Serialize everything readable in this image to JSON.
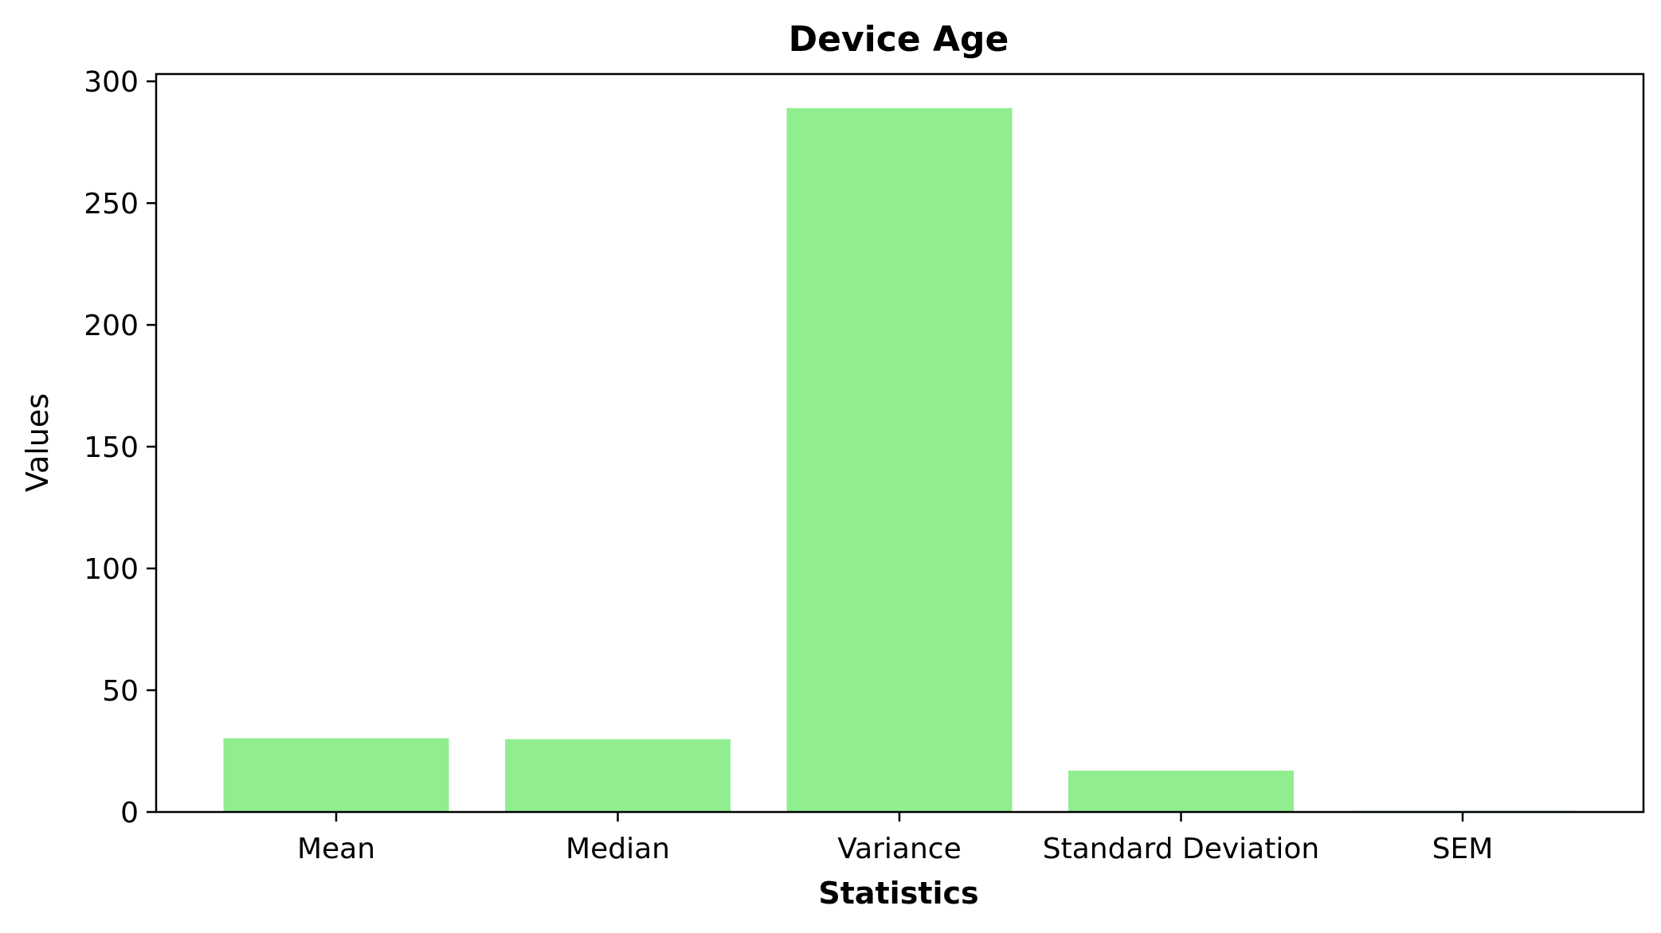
{
  "chart_data": {
    "type": "bar",
    "title": "Device Age",
    "xlabel": "Statistics",
    "ylabel": "Values",
    "categories": [
      "Mean",
      "Median",
      "Variance",
      "Standard Deviation",
      "SEM"
    ],
    "values": [
      30.3,
      29.9,
      289.0,
      17.0,
      0.5
    ],
    "ylim": [
      0,
      303
    ],
    "yticks": [
      0,
      50,
      100,
      150,
      200,
      250,
      300
    ],
    "bar_color": "#90ee90",
    "grid": false,
    "legend": "none"
  }
}
